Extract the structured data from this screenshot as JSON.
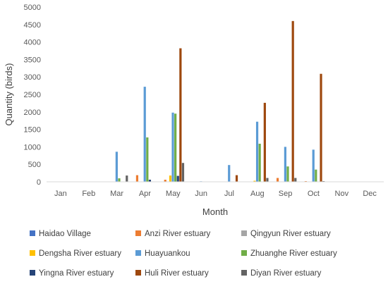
{
  "chart_data": {
    "type": "bar",
    "xlabel": "Month",
    "ylabel": "Quantity (birds)",
    "ylim": [
      0,
      5000
    ],
    "yticks": [
      0,
      500,
      1000,
      1500,
      2000,
      2500,
      3000,
      3500,
      4000,
      4500,
      5000
    ],
    "categories": [
      "Jan",
      "Feb",
      "Mar",
      "Apr",
      "May",
      "Jun",
      "Jul",
      "Aug",
      "Sep",
      "Oct",
      "Nov",
      "Dec"
    ],
    "grid": false,
    "legend_position": "bottom",
    "series": [
      {
        "name": "Haidao Village",
        "color": "#4472C4",
        "values": [
          0,
          0,
          0,
          0,
          0,
          0,
          0,
          0,
          0,
          0,
          0,
          0
        ]
      },
      {
        "name": "Anzi River estuary",
        "color": "#ED7D31",
        "values": [
          0,
          0,
          0,
          190,
          60,
          0,
          0,
          0,
          110,
          20,
          0,
          0
        ]
      },
      {
        "name": "Qingyun River estuary",
        "color": "#A5A5A5",
        "values": [
          0,
          0,
          0,
          0,
          0,
          0,
          0,
          0,
          0,
          0,
          0,
          0
        ]
      },
      {
        "name": "Dengsha River estuary",
        "color": "#FFC000",
        "values": [
          0,
          0,
          0,
          0,
          180,
          0,
          10,
          30,
          0,
          0,
          0,
          0
        ]
      },
      {
        "name": "Huayuankou",
        "color": "#5B9BD5",
        "values": [
          0,
          0,
          860,
          2720,
          1980,
          15,
          480,
          1720,
          1000,
          920,
          0,
          0
        ]
      },
      {
        "name": "Zhuanghe River estuary",
        "color": "#70AD47",
        "values": [
          0,
          0,
          100,
          1270,
          1950,
          0,
          0,
          1090,
          440,
          350,
          0,
          0
        ]
      },
      {
        "name": "Yingna River estuary",
        "color": "#264478",
        "values": [
          0,
          0,
          0,
          60,
          170,
          0,
          0,
          0,
          0,
          0,
          0,
          0
        ]
      },
      {
        "name": "Huli River estuary",
        "color": "#9E480E",
        "values": [
          0,
          0,
          0,
          0,
          3820,
          0,
          190,
          2260,
          4600,
          3090,
          0,
          0
        ]
      },
      {
        "name": "Diyan River estuary",
        "color": "#636363",
        "values": [
          0,
          0,
          180,
          0,
          540,
          0,
          0,
          110,
          110,
          20,
          0,
          0
        ]
      }
    ]
  }
}
